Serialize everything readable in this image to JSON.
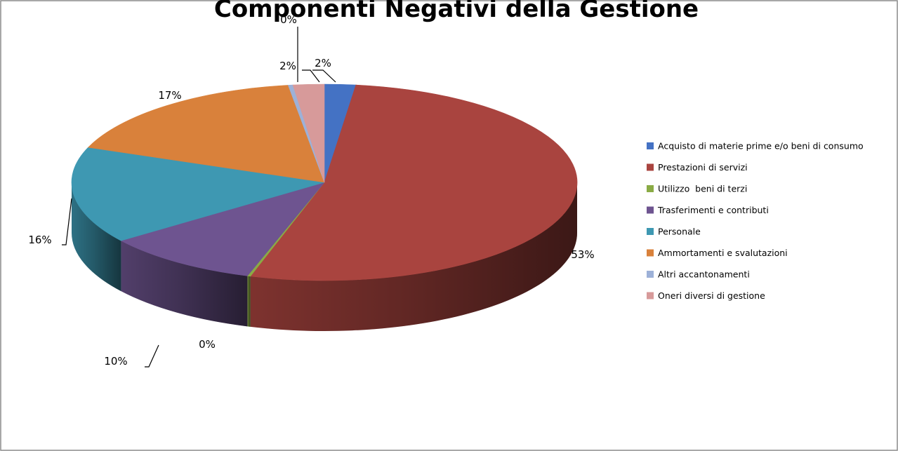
{
  "chart_data": {
    "type": "pie",
    "title": "Componenti Negativi della Gestione",
    "categories": [
      "Acquisto di materie prime e/o beni di consumo",
      "Prestazioni di servizi",
      "Utilizzo  beni di terzi",
      "Trasferimenti e contributi",
      "Personale",
      "Ammortamenti e svalutazioni",
      "Altri accantonamenti",
      "Oneri diversi di gestione"
    ],
    "values": [
      2,
      53,
      0.2,
      10,
      16,
      17,
      0.3,
      2
    ],
    "data_labels": [
      "2%",
      "53%",
      "0%",
      "10%",
      "16%",
      "17%",
      "0%",
      "2%"
    ],
    "colors": [
      "#4472C4",
      "#A9443F",
      "#8AAB45",
      "#6E5490",
      "#3E98B2",
      "#D9813B",
      "#9DB1D8",
      "#D79A9A"
    ],
    "legend_position": "right",
    "style": "3d"
  }
}
